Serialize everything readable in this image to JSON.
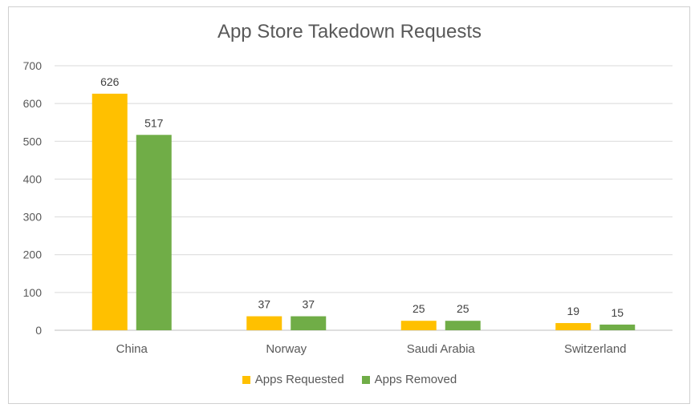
{
  "chart_data": {
    "type": "bar",
    "title": "App Store Takedown Requests",
    "categories": [
      "China",
      "Norway",
      "Saudi Arabia",
      "Switzerland"
    ],
    "series": [
      {
        "name": "Apps Requested",
        "values": [
          626,
          37,
          25,
          19
        ],
        "color": "#FFC000"
      },
      {
        "name": "Apps Removed",
        "values": [
          517,
          37,
          25,
          15
        ],
        "color": "#70AD47"
      }
    ],
    "ylim": [
      0,
      700
    ],
    "yticks": [
      0,
      100,
      200,
      300,
      400,
      500,
      600,
      700
    ],
    "grid": true,
    "legend": "bottom",
    "data_labels": true
  }
}
